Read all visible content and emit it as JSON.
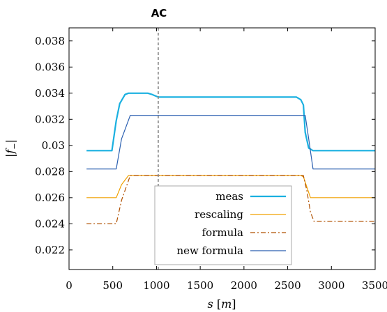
{
  "chart_data": {
    "type": "line",
    "title": "AC",
    "xlabel": "s [m]",
    "ylabel": "|f_-|",
    "xlim": [
      0,
      3500
    ],
    "ylim": [
      0.0205,
      0.039
    ],
    "xticks": [
      0,
      500,
      1000,
      1500,
      2000,
      2500,
      3000,
      3500
    ],
    "xtick_labels": [
      "0",
      "500",
      "1000",
      "1500",
      "2000",
      "2500",
      "3000",
      "3500"
    ],
    "yticks": [
      0.022,
      0.024,
      0.026,
      0.028,
      0.03,
      0.032,
      0.034,
      0.036,
      0.038
    ],
    "ytick_labels": [
      "0.022",
      "0.024",
      "0.026",
      "0.028",
      "0.03",
      "0.032",
      "0.034",
      "0.036",
      "0.038"
    ],
    "vline": {
      "x": 1020,
      "color": "#888888",
      "style": "dashed"
    },
    "grid": false,
    "legend_position": "lower-center",
    "series": [
      {
        "name": "meas",
        "color": "#1ab0e0",
        "dash": "solid",
        "width": 2.2,
        "x": [
          200,
          490,
          540,
          580,
          640,
          680,
          900,
          950,
          1020,
          2600,
          2650,
          2680,
          2700,
          2740,
          2790,
          3500
        ],
        "y": [
          0.0296,
          0.0296,
          0.0319,
          0.0332,
          0.0339,
          0.034,
          0.034,
          0.0339,
          0.0337,
          0.0337,
          0.0335,
          0.0331,
          0.031,
          0.0298,
          0.0296,
          0.0296
        ]
      },
      {
        "name": "rescaling",
        "color": "#f0a000",
        "dash": "solid",
        "width": 1.2,
        "x": [
          200,
          540,
          600,
          680,
          2650,
          2680,
          2710,
          2760,
          2800,
          3500
        ],
        "y": [
          0.026,
          0.026,
          0.027,
          0.0277,
          0.0277,
          0.0276,
          0.027,
          0.026,
          0.026,
          0.026
        ]
      },
      {
        "name": "formula",
        "color": "#b05000",
        "dash": "dashdot",
        "width": 1.2,
        "x": [
          200,
          540,
          600,
          700,
          2680,
          2720,
          2760,
          2800,
          3500
        ],
        "y": [
          0.024,
          0.024,
          0.0258,
          0.0277,
          0.0277,
          0.0265,
          0.0249,
          0.0242,
          0.0242
        ]
      },
      {
        "name": "new formula",
        "color": "#2a5fb0",
        "dash": "solid",
        "width": 1.2,
        "x": [
          200,
          540,
          600,
          700,
          2700,
          2740,
          2790,
          3500
        ],
        "y": [
          0.0282,
          0.0282,
          0.0305,
          0.0323,
          0.0323,
          0.0305,
          0.0282,
          0.0282
        ]
      }
    ]
  }
}
